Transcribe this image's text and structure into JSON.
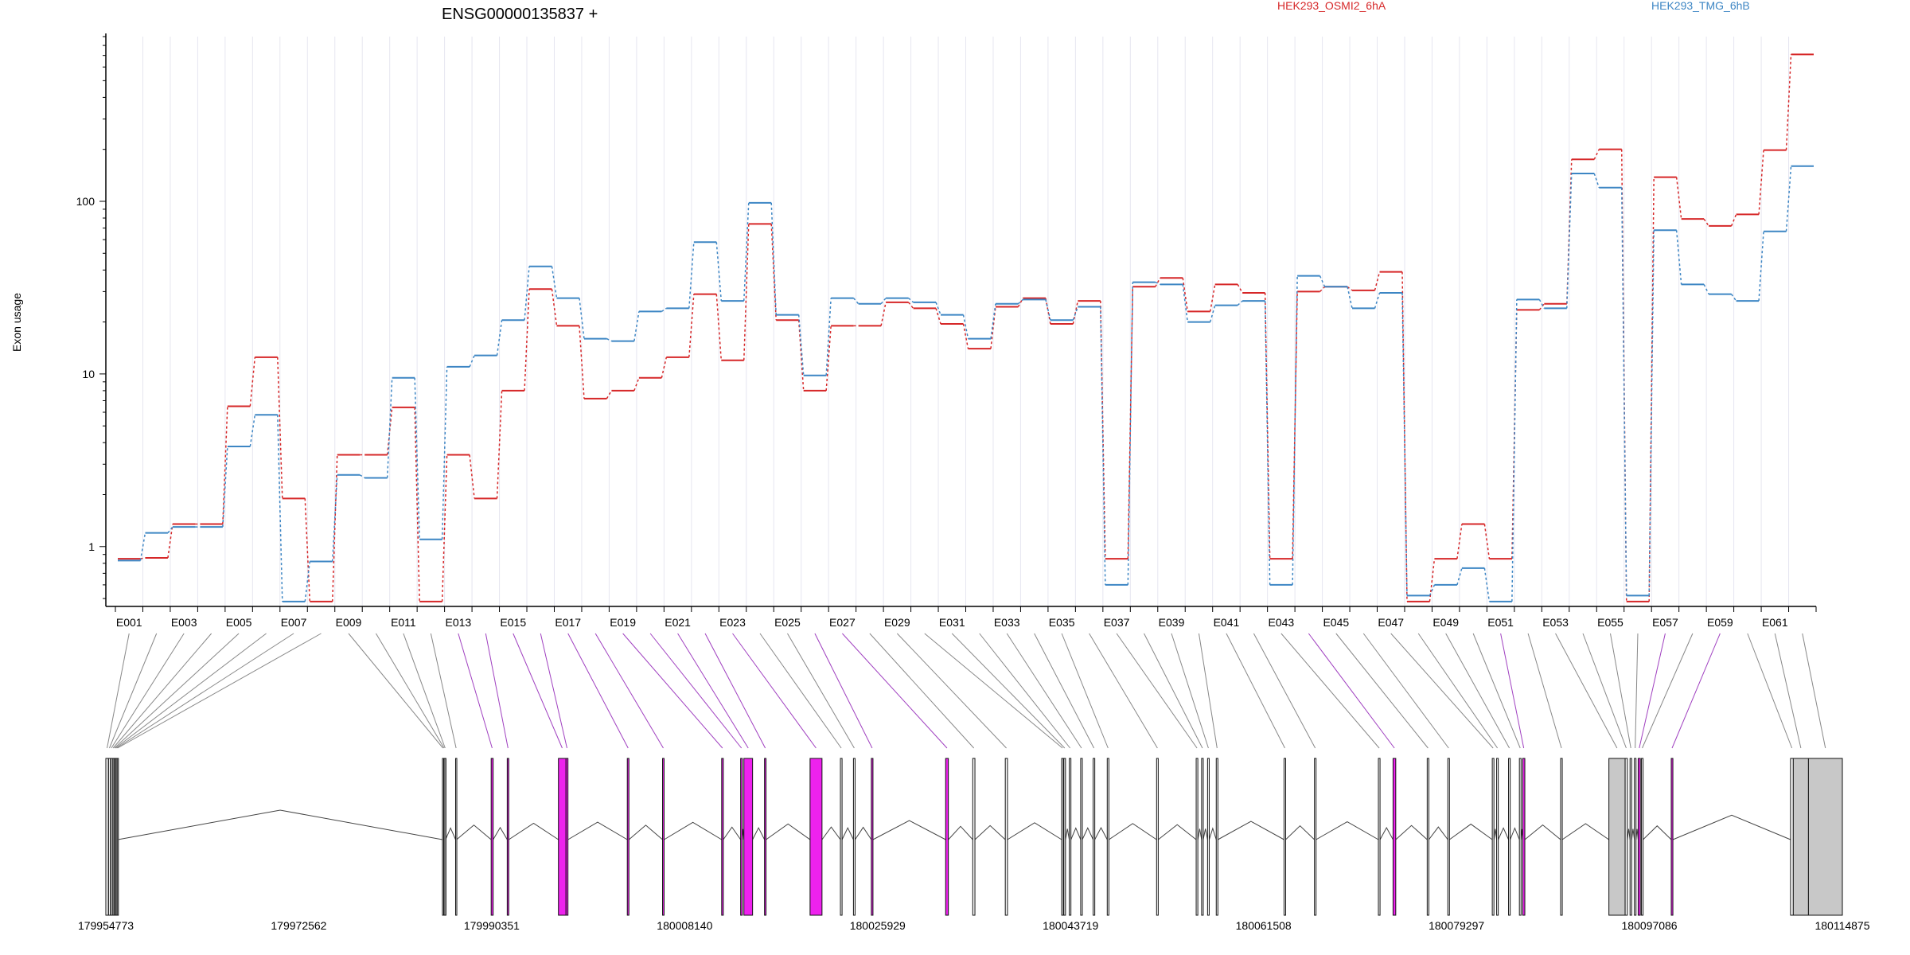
{
  "title": "ENSG00000135837 +",
  "ylabel": "Exon usage",
  "legend": [
    {
      "name": "HEK293_OSMI2_6hA",
      "color": "#d62728"
    },
    {
      "name": "HEK293_TMG_6hB",
      "color": "#3d86c4"
    }
  ],
  "colors": {
    "highlight_exon": "#ee22ee",
    "gray_exon": "#c8c8c8",
    "magenta_connector": "#a040c0",
    "gray_connector": "#888888"
  },
  "chart_data": {
    "type": "line",
    "yscale": "log",
    "ylim": [
      0.45,
      900
    ],
    "yticks": [
      "1",
      "10",
      "100"
    ],
    "categories": [
      "E001",
      "E002",
      "E003",
      "E004",
      "E005",
      "E006",
      "E007",
      "E008",
      "E009",
      "E010",
      "E011",
      "E012",
      "E013",
      "E014",
      "E015",
      "E016",
      "E017",
      "E018",
      "E019",
      "E020",
      "E021",
      "E022",
      "E023",
      "E024",
      "E025",
      "E026",
      "E027",
      "E028",
      "E029",
      "E030",
      "E031",
      "E032",
      "E033",
      "E034",
      "E035",
      "E036",
      "E037",
      "E038",
      "E039",
      "E040",
      "E041",
      "E042",
      "E043",
      "E044",
      "E045",
      "E046",
      "E047",
      "E048",
      "E049",
      "E050",
      "E051",
      "E052",
      "E053",
      "E054",
      "E055",
      "E056",
      "E057",
      "E058",
      "E059",
      "E060",
      "E061",
      "E062"
    ],
    "xtick_labels": [
      "E001",
      "E003",
      "E005",
      "E007",
      "E009",
      "E011",
      "E013",
      "E015",
      "E017",
      "E019",
      "E021",
      "E023",
      "E025",
      "E027",
      "E029",
      "E031",
      "E033",
      "E035",
      "E037",
      "E039",
      "E041",
      "E043",
      "E045",
      "E047",
      "E049",
      "E051",
      "E053",
      "E055",
      "E057",
      "E059",
      "E061"
    ],
    "series": [
      {
        "name": "HEK293_OSMI2_6hA",
        "values": [
          0.85,
          0.86,
          1.35,
          1.35,
          6.5,
          12.5,
          1.9,
          0.48,
          3.4,
          3.4,
          6.4,
          0.48,
          3.4,
          1.9,
          8.0,
          31,
          19,
          7.2,
          8.0,
          9.5,
          12.5,
          29,
          12,
          74,
          20.5,
          8.0,
          19,
          19,
          26,
          24,
          19.5,
          14,
          24.5,
          27.5,
          19.5,
          26.5,
          0.85,
          32,
          36,
          23,
          33,
          29.5,
          0.85,
          30,
          32,
          30.5,
          39,
          0.48,
          0.85,
          1.35,
          0.85,
          23.5,
          25.5,
          175,
          200,
          0.48,
          138,
          79,
          72,
          84,
          198,
          710
        ]
      },
      {
        "name": "HEK293_TMG_6hB",
        "values": [
          0.83,
          1.2,
          1.3,
          1.3,
          3.8,
          5.8,
          0.48,
          0.82,
          2.6,
          2.5,
          9.5,
          1.1,
          11,
          12.8,
          20.5,
          42,
          27.5,
          16,
          15.5,
          23,
          24,
          58,
          26.5,
          98,
          22,
          9.8,
          27.5,
          25.5,
          27.5,
          26,
          22,
          16,
          25.5,
          27,
          20.5,
          24.5,
          0.6,
          34,
          33,
          20,
          25,
          26.5,
          0.6,
          37,
          32,
          24,
          29.5,
          0.52,
          0.6,
          0.75,
          0.48,
          27,
          24,
          145,
          120,
          0.52,
          68,
          33,
          29,
          26.5,
          67,
          160
        ]
      }
    ]
  },
  "gene_model": {
    "coord_min": 179954773,
    "coord_max": 180114875,
    "axis_ticks": [
      "179954773",
      "179972562",
      "179990351",
      "180008140",
      "180025929",
      "180043719",
      "180061508",
      "180079297",
      "180097086",
      "180114875"
    ],
    "exons": [
      [
        179954773,
        179955000,
        0
      ],
      [
        179955020,
        179955180,
        0
      ],
      [
        179955200,
        179955360,
        0
      ],
      [
        179955380,
        179955500,
        0
      ],
      [
        179955520,
        179955600,
        0
      ],
      [
        179955620,
        179955700,
        0
      ],
      [
        179955720,
        179955800,
        0
      ],
      [
        179955820,
        179955880,
        0
      ],
      [
        179985810,
        179985900,
        0
      ],
      [
        179985920,
        179986000,
        0
      ],
      [
        179986020,
        179986090,
        0
      ],
      [
        179987020,
        179987110,
        0
      ],
      [
        179990300,
        179990480,
        1
      ],
      [
        179991780,
        179991920,
        1
      ],
      [
        179996500,
        179997200,
        1
      ],
      [
        179997200,
        179997380,
        1
      ],
      [
        180002850,
        180003000,
        1
      ],
      [
        180006100,
        180006240,
        1
      ],
      [
        180011550,
        180011700,
        1
      ],
      [
        180013300,
        180013450,
        1
      ],
      [
        180013600,
        180014400,
        1
      ],
      [
        180015500,
        180015640,
        1
      ],
      [
        180019700,
        180020800,
        1
      ],
      [
        180022500,
        180022650,
        0
      ],
      [
        180023700,
        180023850,
        0
      ],
      [
        180025350,
        180025500,
        1
      ],
      [
        180032200,
        180032450,
        1
      ],
      [
        180034700,
        180034900,
        0
      ],
      [
        180037700,
        180037900,
        0
      ],
      [
        180042900,
        180043050,
        0
      ],
      [
        180043100,
        180043250,
        0
      ],
      [
        180043600,
        180043750,
        0
      ],
      [
        180044650,
        180044800,
        0
      ],
      [
        180045800,
        180045950,
        0
      ],
      [
        180047100,
        180047250,
        0
      ],
      [
        180051650,
        180051800,
        0
      ],
      [
        180055300,
        180055450,
        0
      ],
      [
        180055800,
        180055950,
        0
      ],
      [
        180056350,
        180056500,
        0
      ],
      [
        180057150,
        180057300,
        0
      ],
      [
        180063400,
        180063550,
        0
      ],
      [
        180066200,
        180066350,
        0
      ],
      [
        180072100,
        180072250,
        0
      ],
      [
        180073450,
        180073700,
        1
      ],
      [
        180076600,
        180076750,
        0
      ],
      [
        180078500,
        180078650,
        0
      ],
      [
        180082600,
        180082750,
        0
      ],
      [
        180083000,
        180083150,
        0
      ],
      [
        180084100,
        180084250,
        0
      ],
      [
        180085100,
        180085250,
        0
      ],
      [
        180085400,
        180085600,
        1
      ],
      [
        180088900,
        180089050,
        0
      ],
      [
        180093350,
        180094850,
        2
      ],
      [
        180094850,
        180095050,
        0
      ],
      [
        180095300,
        180095450,
        0
      ],
      [
        180095700,
        180095850,
        0
      ],
      [
        180096050,
        180096250,
        1
      ],
      [
        180096350,
        180096500,
        0
      ],
      [
        180099100,
        180099250,
        1
      ],
      [
        180110100,
        180110350,
        0
      ],
      [
        180110350,
        180111750,
        2
      ],
      [
        180111750,
        180114875,
        2
      ]
    ]
  }
}
